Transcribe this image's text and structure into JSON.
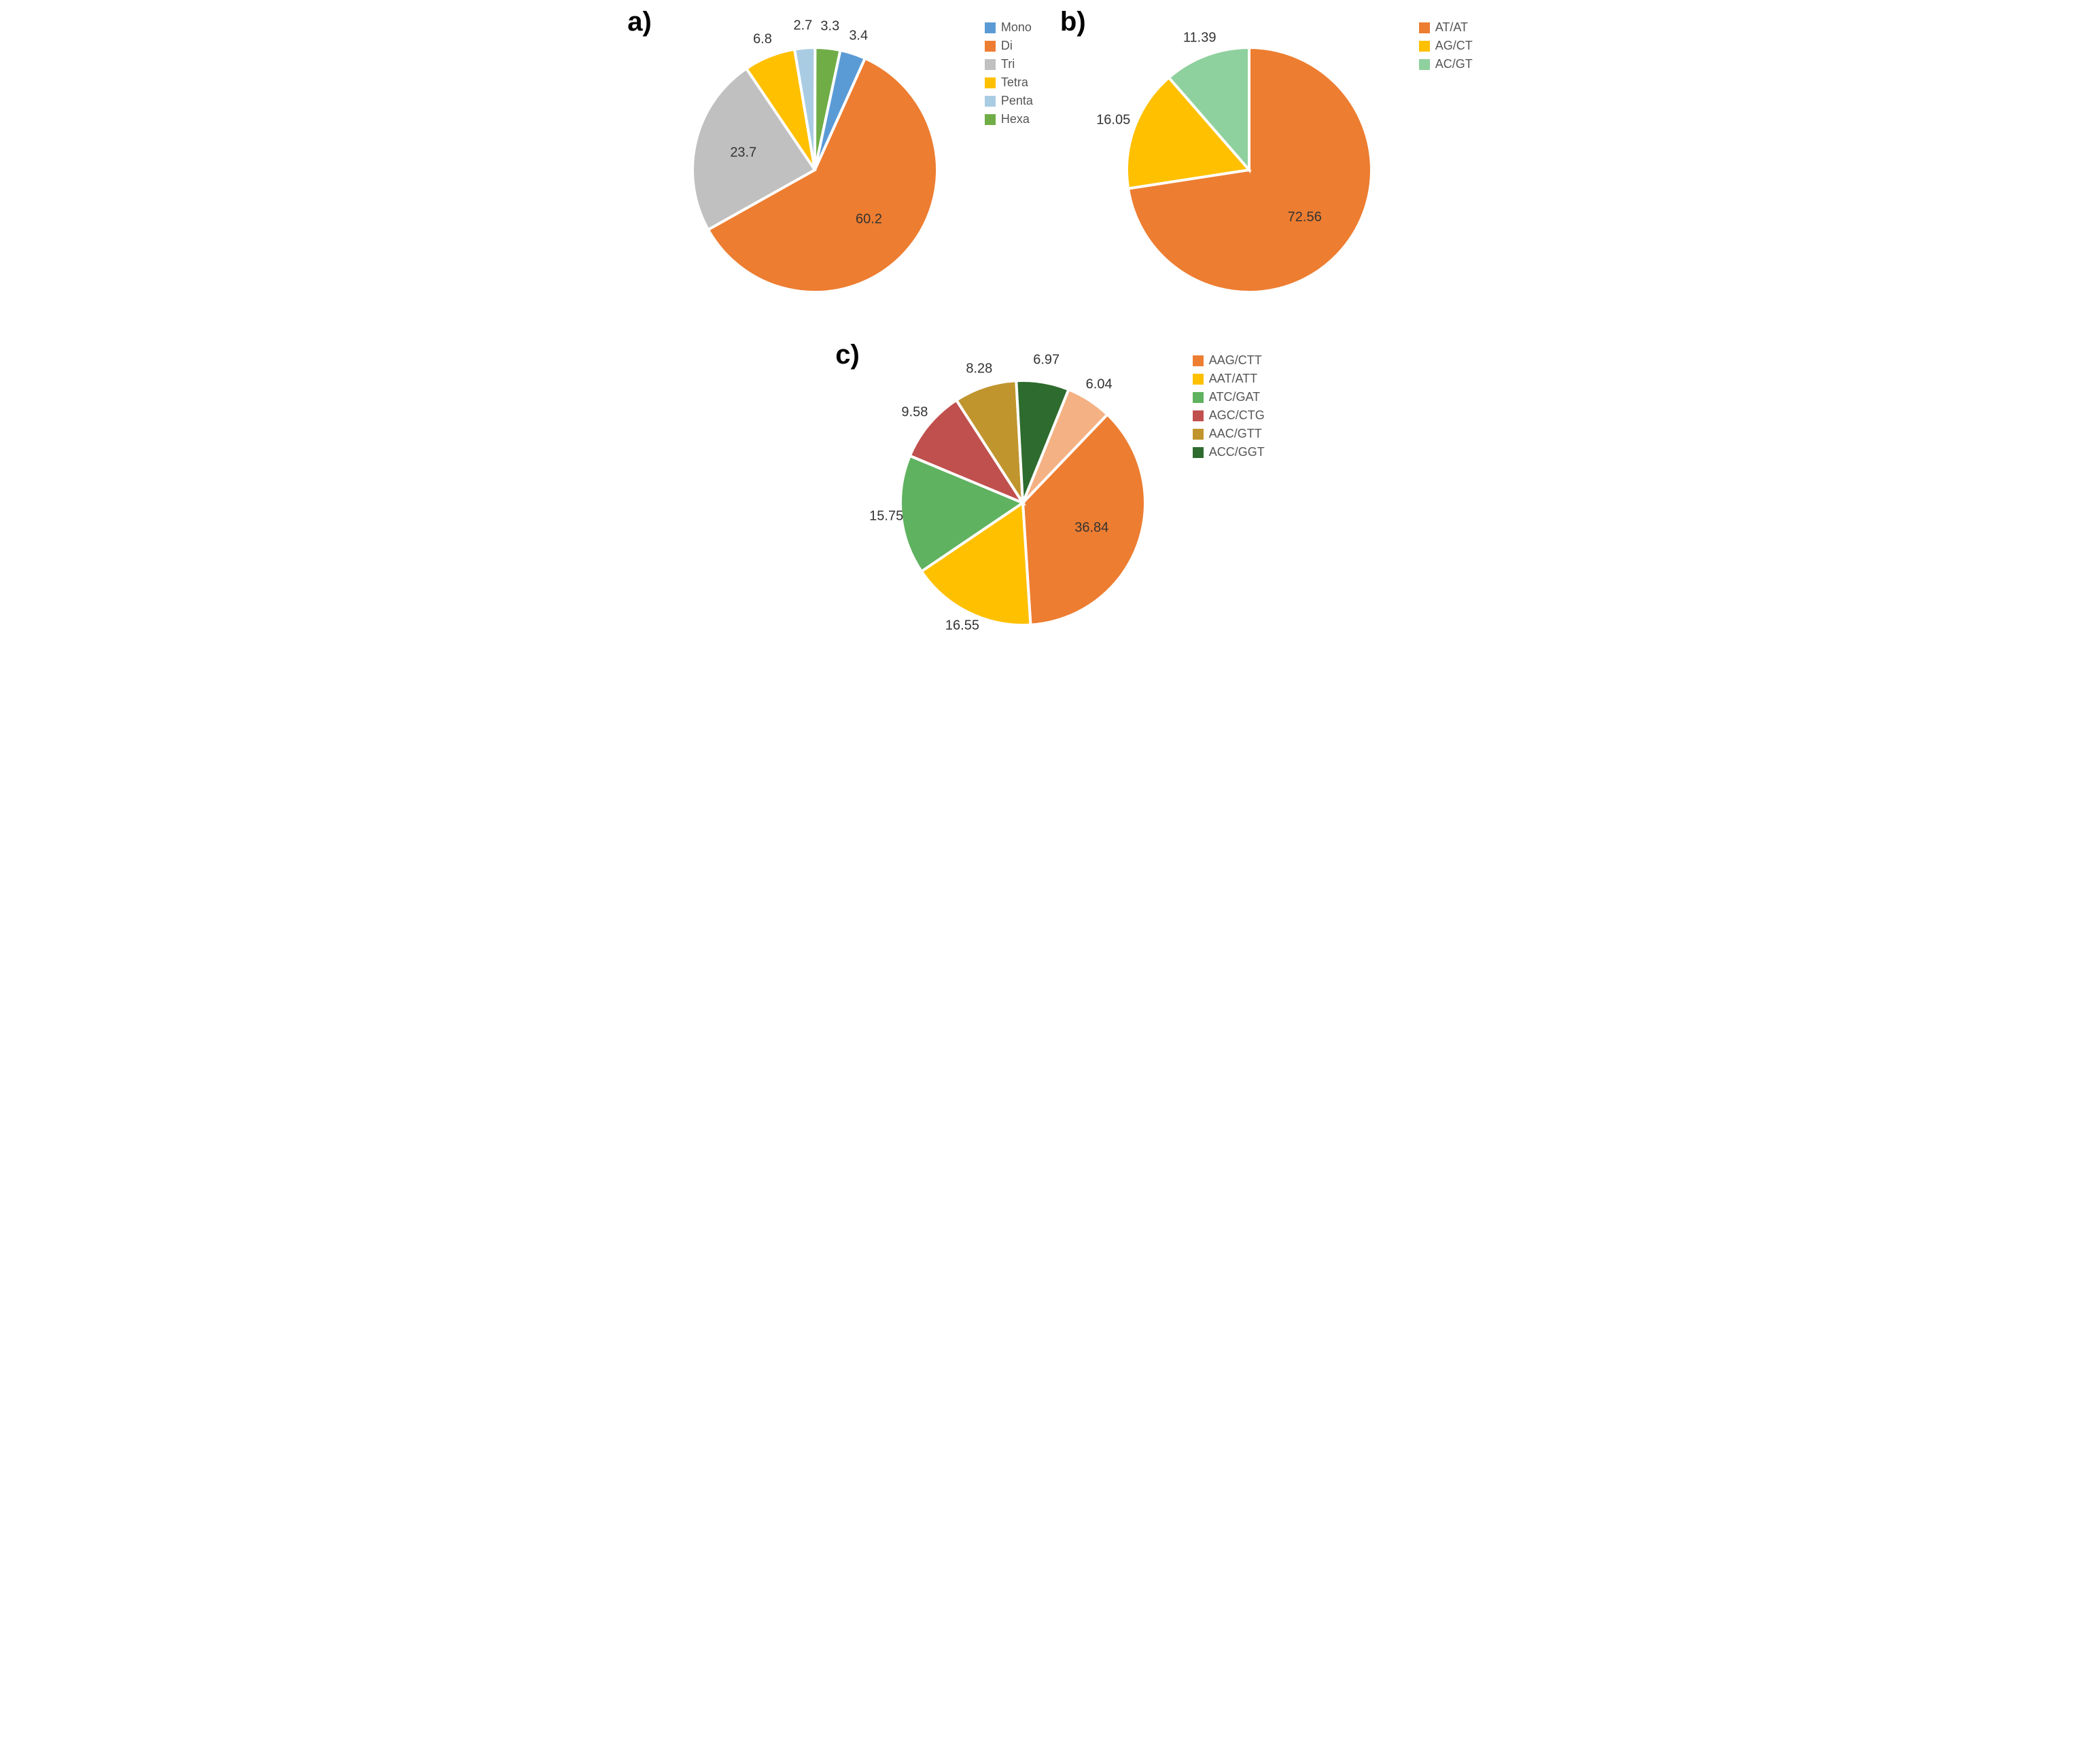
{
  "figure": {
    "background_color": "#ffffff",
    "label_color": "#333333",
    "slice_stroke": "#ffffff",
    "slice_stroke_width": 4,
    "label_fontsize": 20,
    "panel_label_fontsize": 40,
    "legend_fontsize": 18
  },
  "panels": {
    "a": {
      "label": "a)",
      "type": "pie",
      "radius": 180,
      "start_angle_deg": 12,
      "legend": [
        {
          "label": "Mono",
          "color": "#5b9bd5"
        },
        {
          "label": "Di",
          "color": "#ed7d31"
        },
        {
          "label": "Tri",
          "color": "#c0c0c0"
        },
        {
          "label": "Tetra",
          "color": "#ffc000"
        },
        {
          "label": "Penta",
          "color": "#a9cce3"
        },
        {
          "label": "Hexa",
          "color": "#70ad47"
        }
      ],
      "slices": [
        {
          "value": 3.4,
          "color": "#5b9bd5",
          "label": "3.4",
          "label_r": 1.15
        },
        {
          "value": 60.2,
          "color": "#ed7d31",
          "label": "60.2",
          "label_r": 0.6
        },
        {
          "value": 23.7,
          "color": "#c0c0c0",
          "label": "23.7",
          "label_r": 0.6
        },
        {
          "value": 6.8,
          "color": "#ffc000",
          "label": "6.8",
          "label_r": 1.15
        },
        {
          "value": 2.7,
          "color": "#a9cce3",
          "label": "2.7",
          "label_r": 1.18
        },
        {
          "value": 3.3,
          "color": "#70ad47",
          "label": "3.3",
          "label_r": 1.18
        }
      ]
    },
    "b": {
      "label": "b)",
      "type": "pie",
      "radius": 180,
      "start_angle_deg": 0,
      "legend": [
        {
          "label": "AT/AT",
          "color": "#ed7d31"
        },
        {
          "label": "AG/CT",
          "color": "#ffc000"
        },
        {
          "label": "AC/GT",
          "color": "#8fd19e"
        }
      ],
      "slices": [
        {
          "value": 72.56,
          "color": "#ed7d31",
          "label": "72.56",
          "label_r": 0.6
        },
        {
          "value": 16.05,
          "color": "#ffc000",
          "label": "16.05",
          "label_r": 1.18
        },
        {
          "value": 11.39,
          "color": "#8fd19e",
          "label": "11.39",
          "label_r": 1.15
        }
      ]
    },
    "c": {
      "label": "c)",
      "type": "pie",
      "radius": 180,
      "start_angle_deg": 22,
      "legend": [
        {
          "label": "AAG/CTT",
          "color": "#ed7d31"
        },
        {
          "label": "AAT/ATT",
          "color": "#ffc000"
        },
        {
          "label": "ATC/GAT",
          "color": "#5fb25f"
        },
        {
          "label": "AGC/CTG",
          "color": "#c0504d"
        },
        {
          "label": "AAC/GTT",
          "color": "#c0952e"
        },
        {
          "label": "ACC/GGT",
          "color": "#2e6b2e"
        }
      ],
      "slices": [
        {
          "value": 6.04,
          "color": "#f4b183",
          "label": "6.04",
          "label_r": 1.15
        },
        {
          "value": 36.84,
          "color": "#ed7d31",
          "label": "36.84",
          "label_r": 0.6
        },
        {
          "value": 16.55,
          "color": "#ffc000",
          "label": "16.55",
          "label_r": 1.12
        },
        {
          "value": 15.75,
          "color": "#5fb25f",
          "label": "15.75",
          "label_r": 1.12
        },
        {
          "value": 9.58,
          "color": "#c0504d",
          "label": "9.58",
          "label_r": 1.15
        },
        {
          "value": 8.28,
          "color": "#c0952e",
          "label": "8.28",
          "label_r": 1.15
        },
        {
          "value": 6.97,
          "color": "#2e6b2e",
          "label": "6.97",
          "label_r": 1.18
        }
      ]
    }
  }
}
